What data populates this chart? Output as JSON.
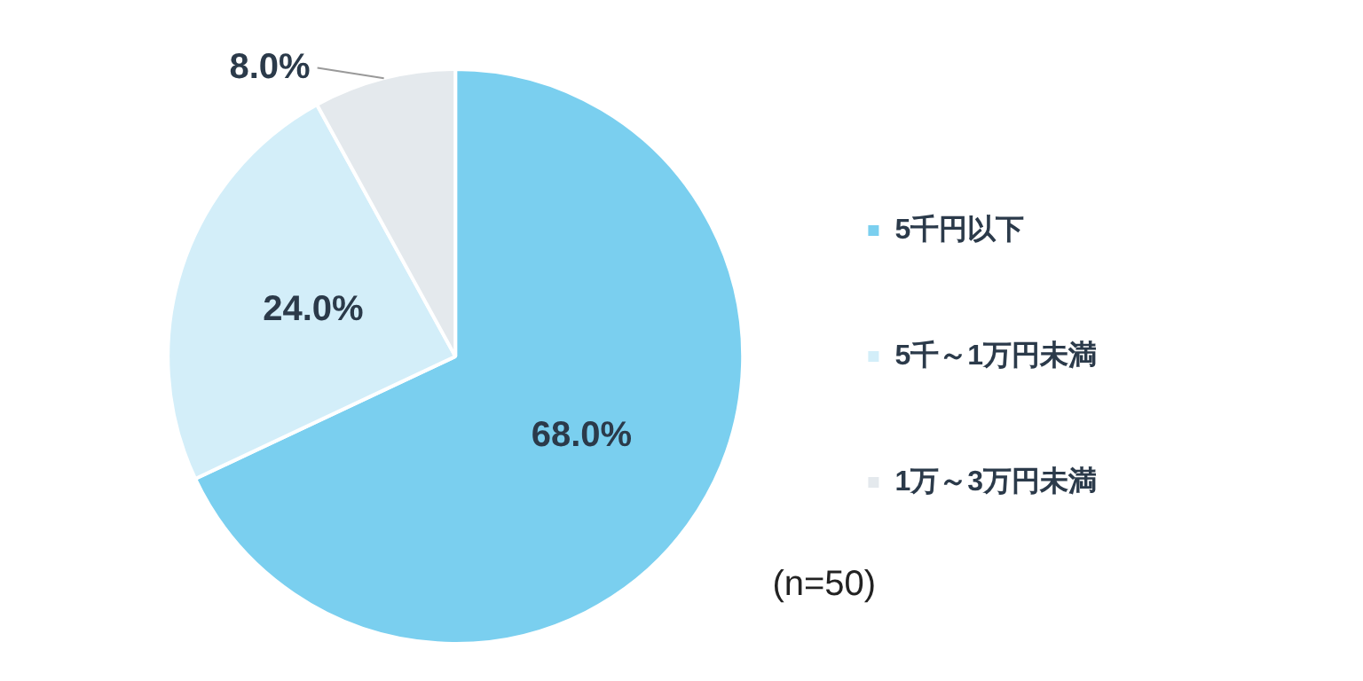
{
  "chart_data": {
    "type": "pie",
    "categories": [
      "5千円以下",
      "5千～1万円未満",
      "1万～3万円未満"
    ],
    "values": [
      68,
      24,
      8
    ],
    "colors": [
      "#7acfef",
      "#d3eef9",
      "#e4e9ed"
    ],
    "value_labels": [
      "68.0%",
      "24.0%",
      "8.0%"
    ],
    "legend": "right",
    "annotations": [
      "(n=50)"
    ]
  }
}
